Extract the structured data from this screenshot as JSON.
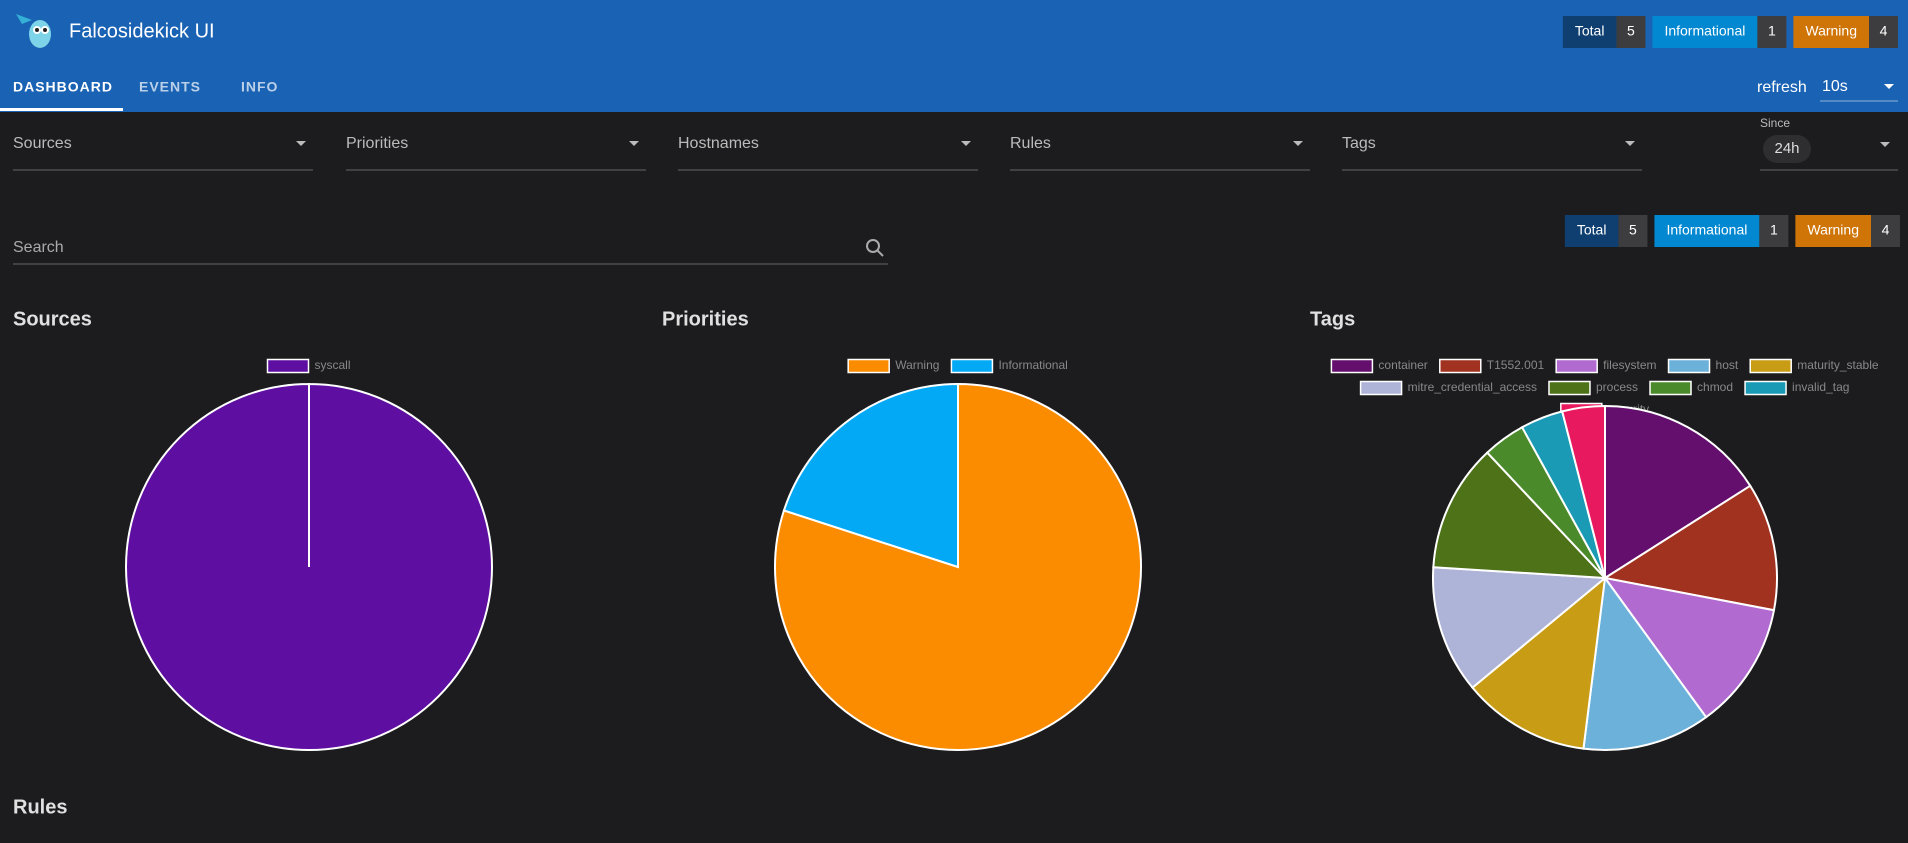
{
  "header": {
    "title": "Falcosidekick UI",
    "badges": [
      {
        "label": "Total",
        "count": 5
      },
      {
        "label": "Informational",
        "count": 1
      },
      {
        "label": "Warning",
        "count": 4
      }
    ],
    "refresh_label": "refresh",
    "refresh_value": "10s"
  },
  "tabs": [
    "DASHBOARD",
    "EVENTS",
    "INFO"
  ],
  "filters": [
    "Sources",
    "Priorities",
    "Hostnames",
    "Rules",
    "Tags"
  ],
  "since": {
    "label": "Since",
    "value": "24h"
  },
  "search": "Search",
  "rules_heading": "Rules",
  "chart_data": [
    {
      "type": "pie",
      "title": "Sources",
      "categories": [
        "syscall"
      ],
      "values": [
        5
      ],
      "colors": [
        "#5e0ea0"
      ]
    },
    {
      "type": "pie",
      "title": "Priorities",
      "categories": [
        "Warning",
        "Informational"
      ],
      "values": [
        4,
        1
      ],
      "colors": [
        "#fb8c00",
        "#03a9f4"
      ]
    },
    {
      "type": "pie",
      "title": "Tags",
      "categories": [
        "container",
        "T1552.001",
        "filesystem",
        "host",
        "maturity_stable",
        "mitre_credential_access",
        "process",
        "chmod",
        "invalid_tag",
        "security"
      ],
      "values": [
        4,
        3,
        3,
        3,
        3,
        3,
        3,
        1,
        1,
        1
      ],
      "colors": [
        "#640f6e",
        "#a1321f",
        "#b16bd0",
        "#6bb1da",
        "#c99c15",
        "#aeb3d8",
        "#4e7218",
        "#4a8a2b",
        "#1a9ab5",
        "#e8195e"
      ]
    }
  ]
}
